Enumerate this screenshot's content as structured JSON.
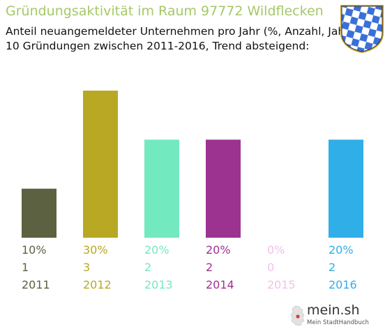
{
  "header": {
    "title": "Gründungsaktivität im Raum 97772 Wildflecken",
    "subtitle_line1": "Anteil neuangemeldeter Unternehmen pro Jahr (%, Anzahl, Jahr)",
    "subtitle_line2": "10 Gründungen zwischen 2011-2016, Trend absteigend:"
  },
  "logo": {
    "name": "mein.sh",
    "tagline": "Mein StadtHandbuch"
  },
  "colors": {
    "title": "#a6c867",
    "bars": [
      "#5c6141",
      "#b8a823",
      "#72e9bf",
      "#9c3391",
      "#f4bfea",
      "#30aee8"
    ],
    "bavaria_blue": "#3a6fd8"
  },
  "chart_data": {
    "type": "bar",
    "categories": [
      "2011",
      "2012",
      "2013",
      "2014",
      "2015",
      "2016"
    ],
    "values": [
      10,
      30,
      20,
      20,
      0,
      20
    ],
    "percent_labels": [
      "10%",
      "30%",
      "20%",
      "20%",
      "0%",
      "20%"
    ],
    "counts": [
      "1",
      "3",
      "2",
      "2",
      "0",
      "2"
    ],
    "ylim": [
      0,
      30
    ],
    "grid": false,
    "legend": "none"
  }
}
